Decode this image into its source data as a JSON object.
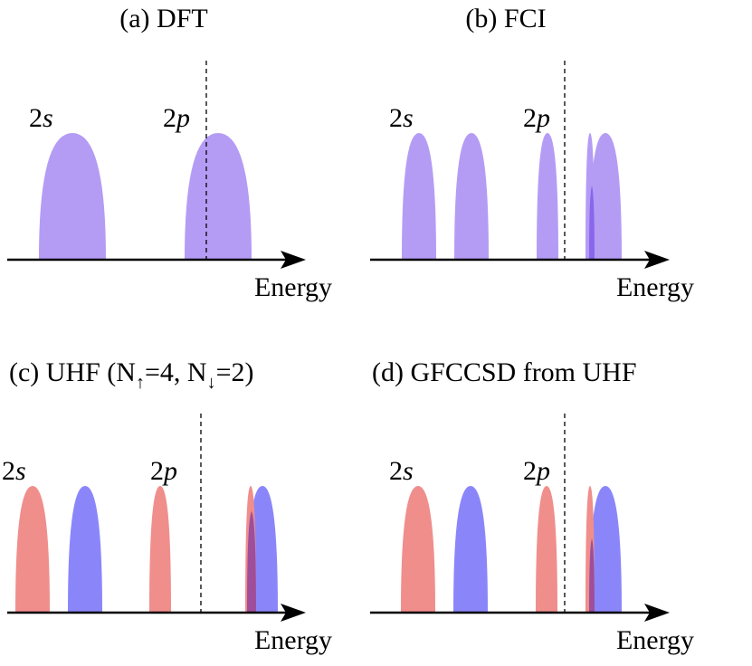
{
  "colors": {
    "combined": "#b49cf5",
    "spin_up": "#f08e8c",
    "spin_down": "#8a86fa",
    "overlap": "#9e4e9a",
    "overlap_fci": "#8a66ec"
  },
  "panels": [
    {
      "title": "(a) DFT",
      "axis_label": "Energy",
      "label_2s_main": "2",
      "label_2s_sub": "s",
      "label_2p_main": "2",
      "label_2p_sub": "p"
    },
    {
      "title": "(b) FCI",
      "axis_label": "Energy",
      "label_2s_main": "2",
      "label_2s_sub": "s",
      "label_2p_main": "2",
      "label_2p_sub": "p"
    },
    {
      "title_prefix": "(c) UHF (N",
      "up_arrow": "↑",
      "title_mid": "=4, N",
      "down_arrow": "↓",
      "title_suffix": "=2)",
      "axis_label": "Energy",
      "label_2s_main": "2",
      "label_2s_sub": "s",
      "label_2p_main": "2",
      "label_2p_sub": "p"
    },
    {
      "title": "(d) GFCCSD from UHF",
      "axis_label": "Energy",
      "label_2s_main": "2",
      "label_2s_sub": "s",
      "label_2p_main": "2",
      "label_2p_sub": "p"
    }
  ]
}
